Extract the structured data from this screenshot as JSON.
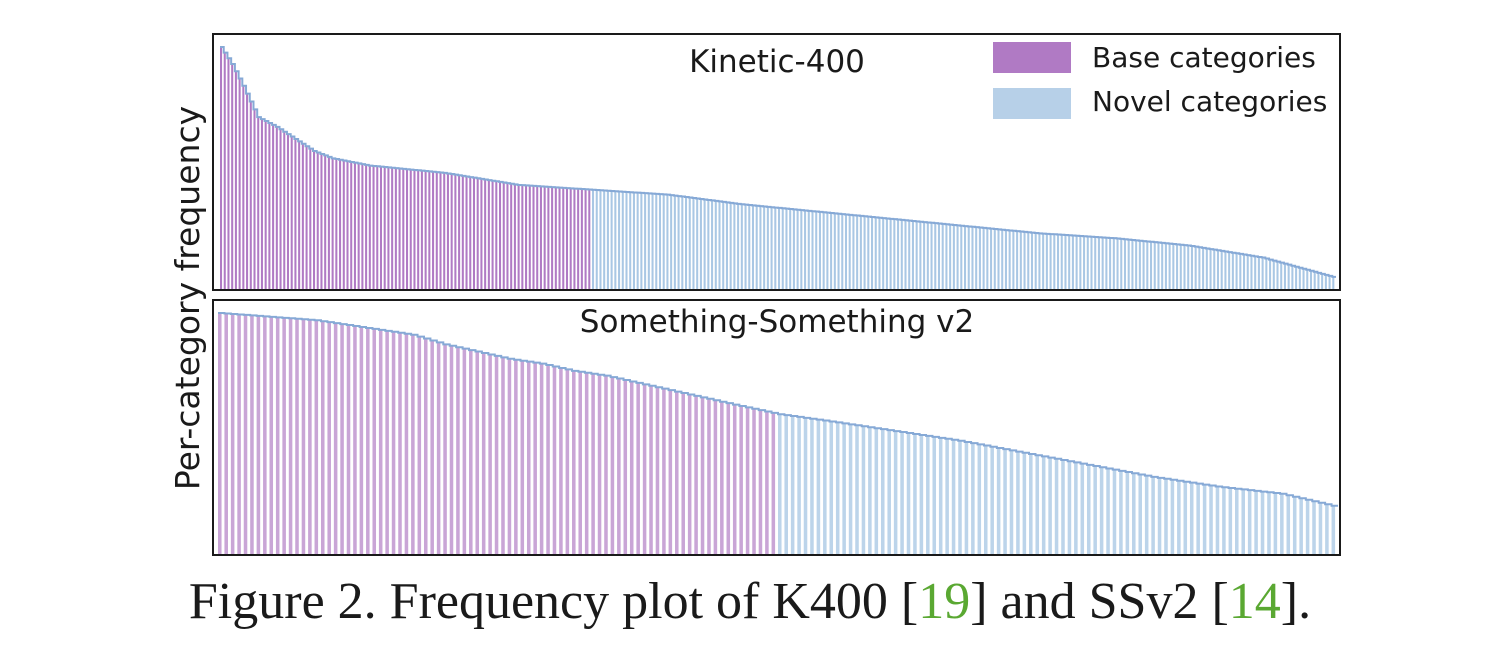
{
  "chart_data": [
    {
      "type": "bar",
      "title": "Kinetic-400",
      "ylabel": "Per-category frequency",
      "legend_position": "top-right",
      "grid": false,
      "colors": {
        "base": "#b07ac4",
        "novel": "#a9c7e4",
        "outline": "#86a9d6"
      },
      "series": [
        {
          "name": "Base categories",
          "count": 100,
          "color": "#b07ac4"
        },
        {
          "name": "Novel categories",
          "count": 200,
          "color": "#a9c7e4"
        }
      ],
      "profile": {
        "x": [
          0,
          3,
          6,
          10,
          15,
          20,
          25,
          30,
          40,
          60,
          80,
          100,
          120,
          140,
          160,
          180,
          200,
          220,
          240,
          260,
          280,
          299
        ],
        "y": [
          1.0,
          0.93,
          0.84,
          0.71,
          0.67,
          0.62,
          0.57,
          0.54,
          0.51,
          0.48,
          0.43,
          0.41,
          0.39,
          0.35,
          0.32,
          0.29,
          0.26,
          0.23,
          0.21,
          0.18,
          0.13,
          0.05
        ]
      }
    },
    {
      "type": "bar",
      "title": "Something-Something v2",
      "ylabel": "Per-category frequency",
      "grid": false,
      "colors": {
        "base": "#c9a5d6",
        "novel": "#bcd4ea",
        "outline": "#86a9d6"
      },
      "series": [
        {
          "name": "Base categories",
          "count": 87,
          "color": "#c9a5d6"
        },
        {
          "name": "Novel categories",
          "count": 87,
          "color": "#bcd4ea"
        }
      ],
      "profile": {
        "x": [
          0,
          5,
          10,
          15,
          20,
          25,
          30,
          35,
          40,
          45,
          50,
          55,
          60,
          65,
          70,
          75,
          80,
          87,
          95,
          105,
          115,
          125,
          135,
          145,
          155,
          165,
          173
        ],
        "y": [
          1.0,
          0.99,
          0.98,
          0.97,
          0.95,
          0.93,
          0.91,
          0.87,
          0.84,
          0.81,
          0.79,
          0.76,
          0.74,
          0.71,
          0.68,
          0.65,
          0.62,
          0.58,
          0.55,
          0.51,
          0.47,
          0.42,
          0.37,
          0.32,
          0.28,
          0.25,
          0.2
        ]
      }
    }
  ],
  "legend": {
    "base": "Base categories",
    "novel": "Novel categories"
  },
  "caption": {
    "prefix": "Figure 2. Frequency plot of K400 [",
    "ref1": "19",
    "middle": "] and SSv2 [",
    "ref2": "14",
    "suffix": "]."
  }
}
